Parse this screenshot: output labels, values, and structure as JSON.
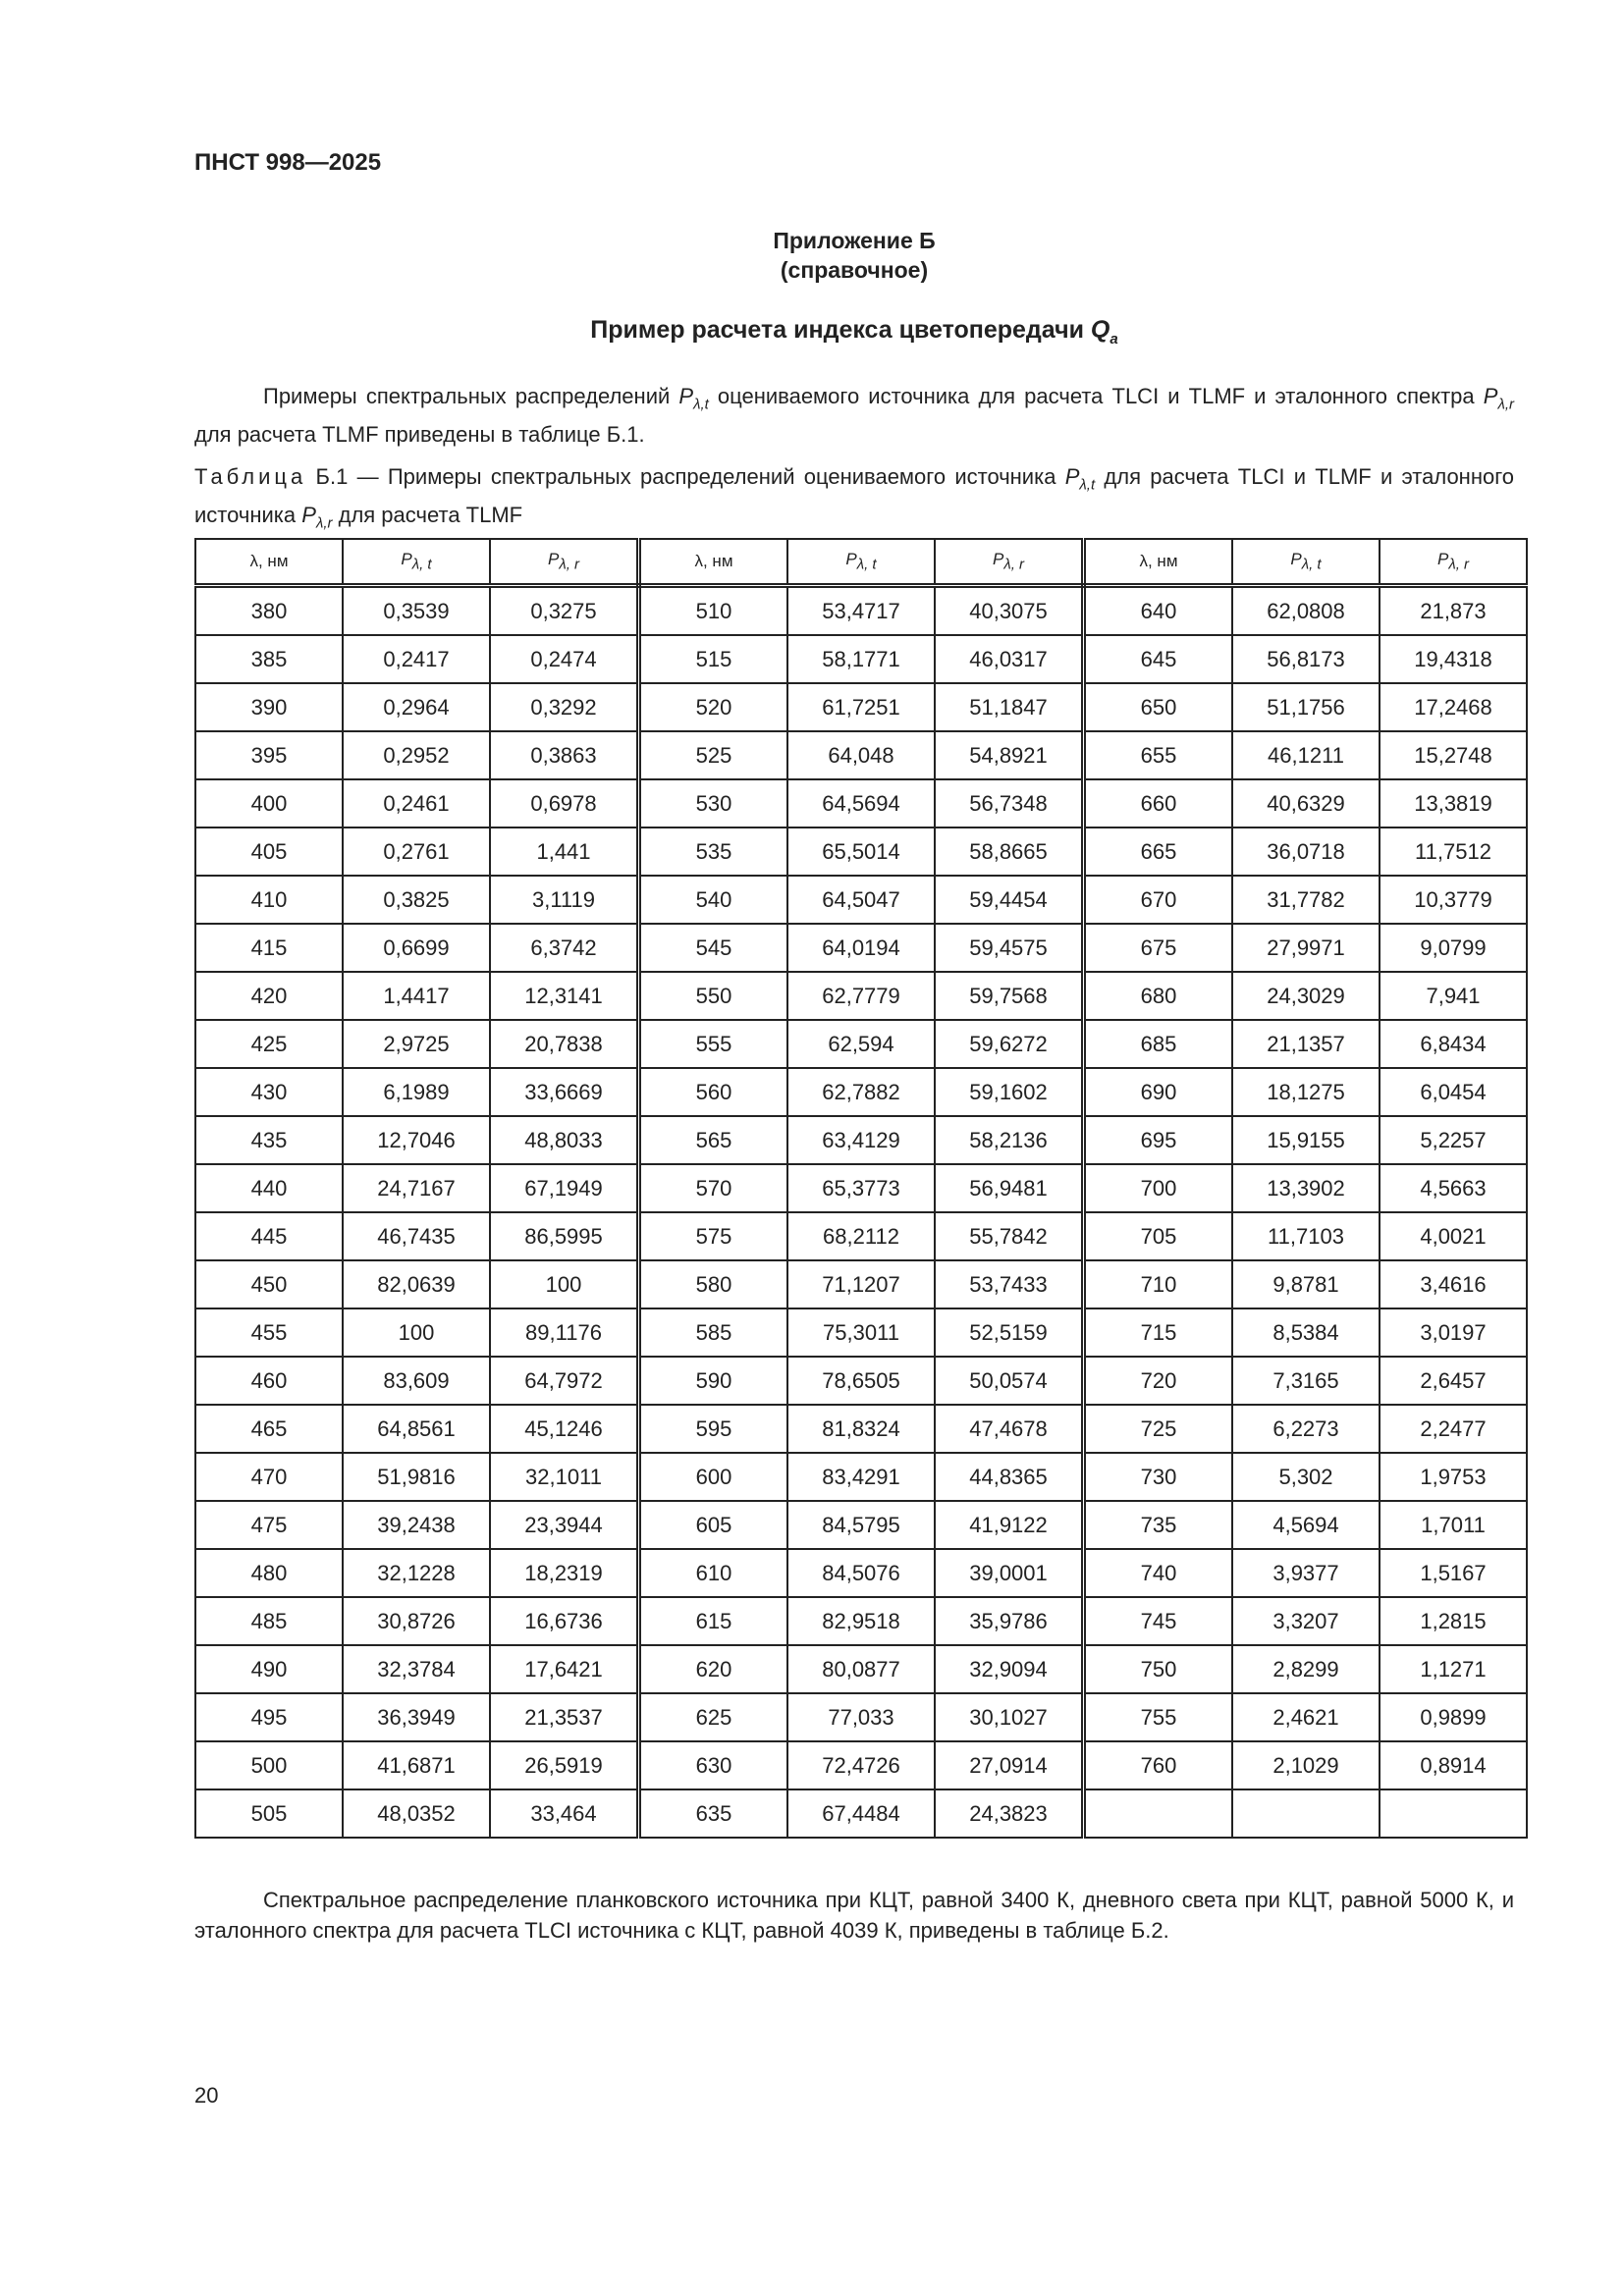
{
  "header": {
    "doc_code": "ПНСТ 998—2025"
  },
  "annex": {
    "title": "Приложение Б",
    "kind": "(справочное)",
    "example_title": "Пример расчета индекса цветопередачи",
    "example_symbol": "Q",
    "example_sub": "a"
  },
  "intro": {
    "part1": "Примеры спектральных распределений",
    "sym1": "P",
    "sub1": "λ,t",
    "part2": "оцениваемого источника для расчета TLCI и TLMF и эталонного спектра",
    "sym2": "P",
    "sub2": "λ,r",
    "part3": "для расчета TLMF приведены в таблице Б.1."
  },
  "caption": {
    "label": "Таблица",
    "number": "Б.1 — Примеры спектральных распределений оцениваемого источника",
    "sym1": "P",
    "sub1": "λ,t",
    "part2": "для расчета TLCI и TLMF и эталонного источника",
    "sym2": "P",
    "sub2": "λ,r",
    "part3": "для расчета TLMF"
  },
  "table": {
    "headers": {
      "lambda": "λ, нм",
      "pt_sym": "P",
      "pt_sub": "λ, t",
      "pr_sym": "P",
      "pr_sub": "λ, r"
    },
    "rows": [
      [
        "380",
        "0,3539",
        "0,3275",
        "510",
        "53,4717",
        "40,3075",
        "640",
        "62,0808",
        "21,873"
      ],
      [
        "385",
        "0,2417",
        "0,2474",
        "515",
        "58,1771",
        "46,0317",
        "645",
        "56,8173",
        "19,4318"
      ],
      [
        "390",
        "0,2964",
        "0,3292",
        "520",
        "61,7251",
        "51,1847",
        "650",
        "51,1756",
        "17,2468"
      ],
      [
        "395",
        "0,2952",
        "0,3863",
        "525",
        "64,048",
        "54,8921",
        "655",
        "46,1211",
        "15,2748"
      ],
      [
        "400",
        "0,2461",
        "0,6978",
        "530",
        "64,5694",
        "56,7348",
        "660",
        "40,6329",
        "13,3819"
      ],
      [
        "405",
        "0,2761",
        "1,441",
        "535",
        "65,5014",
        "58,8665",
        "665",
        "36,0718",
        "11,7512"
      ],
      [
        "410",
        "0,3825",
        "3,1119",
        "540",
        "64,5047",
        "59,4454",
        "670",
        "31,7782",
        "10,3779"
      ],
      [
        "415",
        "0,6699",
        "6,3742",
        "545",
        "64,0194",
        "59,4575",
        "675",
        "27,9971",
        "9,0799"
      ],
      [
        "420",
        "1,4417",
        "12,3141",
        "550",
        "62,7779",
        "59,7568",
        "680",
        "24,3029",
        "7,941"
      ],
      [
        "425",
        "2,9725",
        "20,7838",
        "555",
        "62,594",
        "59,6272",
        "685",
        "21,1357",
        "6,8434"
      ],
      [
        "430",
        "6,1989",
        "33,6669",
        "560",
        "62,7882",
        "59,1602",
        "690",
        "18,1275",
        "6,0454"
      ],
      [
        "435",
        "12,7046",
        "48,8033",
        "565",
        "63,4129",
        "58,2136",
        "695",
        "15,9155",
        "5,2257"
      ],
      [
        "440",
        "24,7167",
        "67,1949",
        "570",
        "65,3773",
        "56,9481",
        "700",
        "13,3902",
        "4,5663"
      ],
      [
        "445",
        "46,7435",
        "86,5995",
        "575",
        "68,2112",
        "55,7842",
        "705",
        "11,7103",
        "4,0021"
      ],
      [
        "450",
        "82,0639",
        "100",
        "580",
        "71,1207",
        "53,7433",
        "710",
        "9,8781",
        "3,4616"
      ],
      [
        "455",
        "100",
        "89,1176",
        "585",
        "75,3011",
        "52,5159",
        "715",
        "8,5384",
        "3,0197"
      ],
      [
        "460",
        "83,609",
        "64,7972",
        "590",
        "78,6505",
        "50,0574",
        "720",
        "7,3165",
        "2,6457"
      ],
      [
        "465",
        "64,8561",
        "45,1246",
        "595",
        "81,8324",
        "47,4678",
        "725",
        "6,2273",
        "2,2477"
      ],
      [
        "470",
        "51,9816",
        "32,1011",
        "600",
        "83,4291",
        "44,8365",
        "730",
        "5,302",
        "1,9753"
      ],
      [
        "475",
        "39,2438",
        "23,3944",
        "605",
        "84,5795",
        "41,9122",
        "735",
        "4,5694",
        "1,7011"
      ],
      [
        "480",
        "32,1228",
        "18,2319",
        "610",
        "84,5076",
        "39,0001",
        "740",
        "3,9377",
        "1,5167"
      ],
      [
        "485",
        "30,8726",
        "16,6736",
        "615",
        "82,9518",
        "35,9786",
        "745",
        "3,3207",
        "1,2815"
      ],
      [
        "490",
        "32,3784",
        "17,6421",
        "620",
        "80,0877",
        "32,9094",
        "750",
        "2,8299",
        "1,1271"
      ],
      [
        "495",
        "36,3949",
        "21,3537",
        "625",
        "77,033",
        "30,1027",
        "755",
        "2,4621",
        "0,9899"
      ],
      [
        "500",
        "41,6871",
        "26,5919",
        "630",
        "72,4726",
        "27,0914",
        "760",
        "2,1029",
        "0,8914"
      ],
      [
        "505",
        "48,0352",
        "33,464",
        "635",
        "67,4484",
        "24,3823",
        "",
        "",
        ""
      ]
    ]
  },
  "outro": "Спектральное распределение планковского источника при КЦТ, равной 3400 К, дневного света при КЦТ, равной 5000 К, и эталонного спектра для расчета TLCI источника с КЦТ, равной 4039 К, приведены в таблице Б.2.",
  "footer": {
    "page_number": "20"
  }
}
